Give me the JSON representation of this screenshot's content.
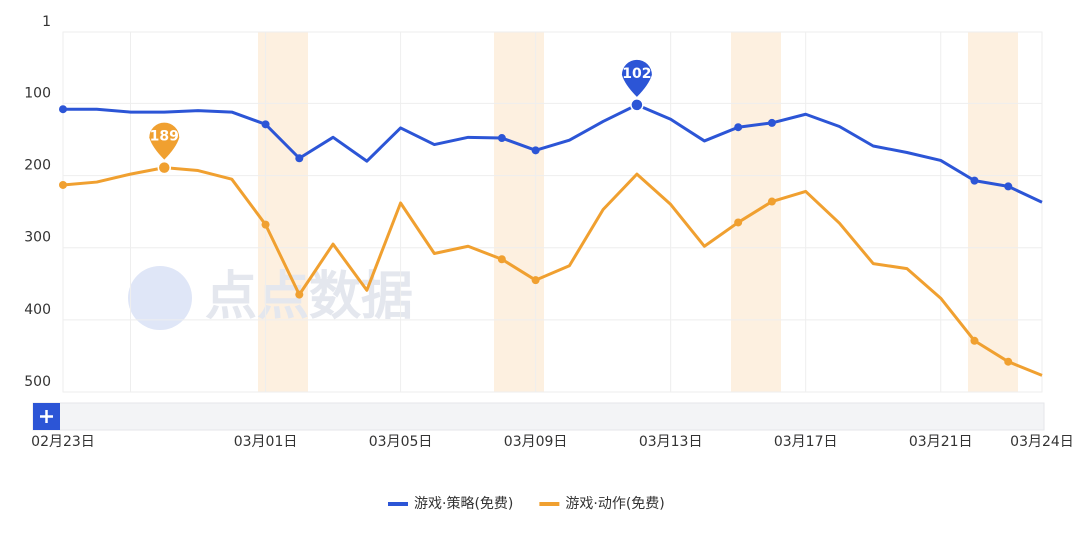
{
  "chart_data": {
    "type": "line",
    "watermark": "点点数据",
    "categories": [
      "02月23日",
      null,
      null,
      null,
      null,
      null,
      "03月01日",
      null,
      null,
      null,
      "03月05日",
      null,
      null,
      null,
      "03月09日",
      null,
      null,
      null,
      "03月13日",
      null,
      null,
      null,
      "03月17日",
      null,
      null,
      null,
      "03月21日",
      null,
      null,
      "03月24日"
    ],
    "series": [
      {
        "name": "游戏·策略(免费)",
        "color": "#2c55d6",
        "values": [
          108,
          108,
          112,
          112,
          110,
          112,
          129,
          176,
          147,
          180,
          134,
          157,
          147,
          148,
          165,
          151,
          125,
          102,
          122,
          152,
          133,
          127,
          115,
          132,
          159,
          168,
          179,
          207,
          215,
          237
        ]
      },
      {
        "name": "游戏·动作(免费)",
        "color": "#f0a030",
        "values": [
          213,
          209,
          198,
          189,
          193,
          205,
          268,
          365,
          295,
          359,
          238,
          308,
          298,
          316,
          345,
          325,
          247,
          198,
          240,
          298,
          265,
          236,
          222,
          266,
          322,
          329,
          370,
          429,
          458,
          477
        ]
      }
    ],
    "ylim": [
      1,
      500
    ],
    "yticks": [
      1,
      100,
      200,
      300,
      400,
      500
    ],
    "inverted": true,
    "grid": true,
    "legend": "bottom"
  }
}
